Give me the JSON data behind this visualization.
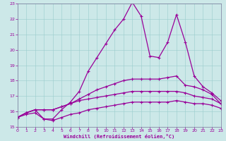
{
  "xlabel": "Windchill (Refroidissement éolien,°C)",
  "bg_color": "#cce8e8",
  "grid_color": "#99cccc",
  "line_color": "#990099",
  "xmin": 0,
  "xmax": 23,
  "ymin": 15,
  "ymax": 23,
  "line1_y": [
    15.6,
    15.9,
    16.1,
    15.5,
    15.5,
    16.1,
    16.6,
    17.3,
    18.6,
    19.5,
    20.4,
    21.3,
    22.0,
    23.1,
    22.2,
    19.6,
    19.5,
    20.5,
    22.3,
    20.5,
    18.3,
    17.6,
    17.2,
    16.7
  ],
  "line2_y": [
    15.6,
    15.9,
    16.1,
    16.1,
    16.1,
    16.3,
    16.5,
    16.8,
    17.1,
    17.4,
    17.6,
    17.8,
    18.0,
    18.1,
    18.1,
    18.1,
    18.1,
    18.2,
    18.3,
    17.7,
    17.6,
    17.4,
    17.1,
    16.5
  ],
  "line3_y": [
    15.6,
    15.9,
    16.1,
    16.1,
    16.1,
    16.3,
    16.5,
    16.7,
    16.8,
    16.9,
    17.0,
    17.1,
    17.2,
    17.3,
    17.3,
    17.3,
    17.3,
    17.3,
    17.3,
    17.2,
    17.0,
    16.9,
    16.8,
    16.5
  ],
  "line4_y": [
    15.6,
    15.8,
    15.9,
    15.5,
    15.4,
    15.6,
    15.8,
    15.9,
    16.1,
    16.2,
    16.3,
    16.4,
    16.5,
    16.6,
    16.6,
    16.6,
    16.6,
    16.6,
    16.7,
    16.6,
    16.5,
    16.5,
    16.4,
    16.2
  ]
}
